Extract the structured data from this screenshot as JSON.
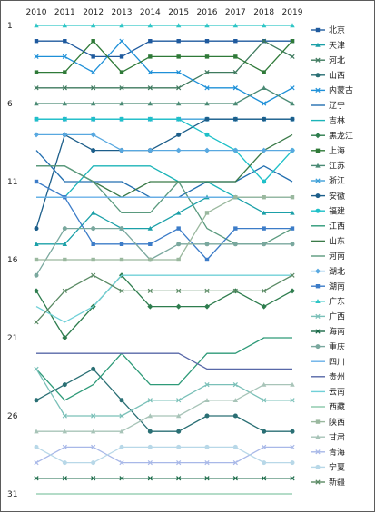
{
  "chart_data": {
    "type": "line",
    "title": "",
    "xlabel": "",
    "ylabel": "",
    "x": [
      2010,
      2011,
      2012,
      2013,
      2014,
      2015,
      2016,
      2017,
      2018,
      2019
    ],
    "x_tick_labels": [
      "2010",
      "2011",
      "2012",
      "2013",
      "2014",
      "2015",
      "2016",
      "2017",
      "2018",
      "2019"
    ],
    "y_ticks": [
      1,
      6,
      11,
      16,
      21,
      26,
      31
    ],
    "y_tick_labels": [
      "1",
      "6",
      "11",
      "16",
      "21",
      "26",
      "31"
    ],
    "ylim": [
      1,
      31
    ],
    "y_inverted": true,
    "x_axis_position": "top",
    "grid": false,
    "legend_position": "right",
    "series": [
      {
        "name": "北京",
        "color": "#1f5a9e",
        "marker": "square",
        "values": [
          2,
          2,
          3,
          3,
          2,
          2,
          2,
          2,
          2,
          2
        ]
      },
      {
        "name": "天津",
        "color": "#1ba0a8",
        "marker": "triangle",
        "values": [
          15,
          15,
          13,
          14,
          14,
          13,
          12,
          12,
          13,
          13
        ]
      },
      {
        "name": "河北",
        "color": "#3e7a5e",
        "marker": "x",
        "values": [
          5,
          5,
          5,
          5,
          5,
          5,
          4,
          4,
          2,
          3
        ]
      },
      {
        "name": "山西",
        "color": "#2a6f74",
        "marker": "circle",
        "values": [
          25,
          24,
          23,
          25,
          27,
          27,
          26,
          26,
          27,
          27
        ]
      },
      {
        "name": "内蒙古",
        "color": "#1e90d8",
        "marker": "x",
        "values": [
          3,
          3,
          4,
          2,
          4,
          4,
          5,
          5,
          6,
          5
        ]
      },
      {
        "name": "辽宁",
        "color": "#236fb0",
        "marker": "none",
        "values": [
          9,
          11,
          11,
          11,
          12,
          12,
          11,
          11,
          10,
          11
        ]
      },
      {
        "name": "吉林",
        "color": "#1cb4b8",
        "marker": "none",
        "values": [
          12,
          12,
          10,
          10,
          10,
          11,
          11,
          12,
          12,
          12
        ]
      },
      {
        "name": "黑龙江",
        "color": "#2e7d4e",
        "marker": "diamond",
        "values": [
          18,
          21,
          19,
          17,
          19,
          19,
          19,
          18,
          19,
          18
        ]
      },
      {
        "name": "上海",
        "color": "#2f7a38",
        "marker": "square",
        "values": [
          4,
          4,
          2,
          4,
          3,
          3,
          3,
          3,
          4,
          2
        ]
      },
      {
        "name": "江苏",
        "color": "#4a8a74",
        "marker": "triangle",
        "values": [
          6,
          6,
          6,
          6,
          6,
          6,
          6,
          6,
          5,
          6
        ]
      },
      {
        "name": "浙江",
        "color": "#3ea0d8",
        "marker": "x",
        "values": [
          7,
          7,
          7,
          7,
          7,
          7,
          7,
          7,
          7,
          7
        ]
      },
      {
        "name": "安徽",
        "color": "#1c5e8a",
        "marker": "circle",
        "values": [
          14,
          8,
          9,
          9,
          9,
          8,
          7,
          7,
          7,
          7
        ]
      },
      {
        "name": "福建",
        "color": "#1ec0c8",
        "marker": "circle",
        "values": [
          7,
          7,
          7,
          7,
          7,
          7,
          8,
          9,
          11,
          9
        ]
      },
      {
        "name": "江西",
        "color": "#2e9a78",
        "marker": "none",
        "values": [
          23,
          25,
          24,
          22,
          24,
          24,
          22,
          22,
          21,
          21
        ]
      },
      {
        "name": "山东",
        "color": "#3a7a48",
        "marker": "none",
        "values": [
          10,
          10,
          11,
          12,
          11,
          11,
          11,
          11,
          9,
          8
        ]
      },
      {
        "name": "河南",
        "color": "#5a9a7e",
        "marker": "none",
        "values": [
          10,
          10,
          11,
          13,
          13,
          11,
          14,
          15,
          15,
          14
        ]
      },
      {
        "name": "湖北",
        "color": "#58a8e0",
        "marker": "diamond",
        "values": [
          8,
          8,
          8,
          9,
          9,
          9,
          9,
          9,
          9,
          9
        ]
      },
      {
        "name": "湖南",
        "color": "#3c7cc8",
        "marker": "square",
        "values": [
          11,
          12,
          15,
          15,
          15,
          14,
          16,
          14,
          14,
          14
        ]
      },
      {
        "name": "广东",
        "color": "#30c6c6",
        "marker": "triangle",
        "values": [
          1,
          1,
          1,
          1,
          1,
          1,
          1,
          1,
          1,
          1
        ]
      },
      {
        "name": "广西",
        "color": "#7ac0b8",
        "marker": "x",
        "values": [
          23,
          26,
          26,
          26,
          25,
          25,
          24,
          24,
          25,
          25
        ]
      },
      {
        "name": "海南",
        "color": "#1a6a48",
        "marker": "x",
        "values": [
          30,
          30,
          30,
          30,
          30,
          30,
          30,
          30,
          30,
          30
        ]
      },
      {
        "name": "重庆",
        "color": "#7aa89e",
        "marker": "circle",
        "values": [
          17,
          14,
          14,
          14,
          16,
          15,
          15,
          15,
          15,
          15
        ]
      },
      {
        "name": "四川",
        "color": "#6ab0e8",
        "marker": "none",
        "values": [
          12,
          12,
          12,
          12,
          12,
          12,
          12,
          12,
          12,
          12
        ]
      },
      {
        "name": "贵州",
        "color": "#5868a8",
        "marker": "none",
        "values": [
          22,
          22,
          22,
          22,
          22,
          22,
          23,
          23,
          23,
          23
        ]
      },
      {
        "name": "云南",
        "color": "#70d0d8",
        "marker": "none",
        "values": [
          19,
          20,
          19,
          17,
          17,
          17,
          17,
          17,
          17,
          17
        ]
      },
      {
        "name": "西藏",
        "color": "#88c8a8",
        "marker": "none",
        "values": [
          31,
          31,
          31,
          31,
          31,
          31,
          31,
          31,
          31,
          31
        ]
      },
      {
        "name": "陕西",
        "color": "#9ab89e",
        "marker": "square",
        "values": [
          16,
          16,
          16,
          16,
          16,
          16,
          13,
          12,
          12,
          12
        ]
      },
      {
        "name": "甘肃",
        "color": "#a8c4b8",
        "marker": "triangle",
        "values": [
          27,
          27,
          27,
          27,
          26,
          26,
          25,
          25,
          24,
          24
        ]
      },
      {
        "name": "青海",
        "color": "#a8b8e8",
        "marker": "x",
        "values": [
          29,
          28,
          28,
          29,
          29,
          29,
          29,
          29,
          28,
          28
        ]
      },
      {
        "name": "宁夏",
        "color": "#b8d8e8",
        "marker": "circle",
        "values": [
          28,
          29,
          29,
          28,
          28,
          28,
          28,
          28,
          29,
          29
        ]
      },
      {
        "name": "新疆",
        "color": "#5a8a64",
        "marker": "x",
        "values": [
          20,
          18,
          17,
          18,
          18,
          18,
          18,
          18,
          18,
          17
        ]
      }
    ]
  }
}
